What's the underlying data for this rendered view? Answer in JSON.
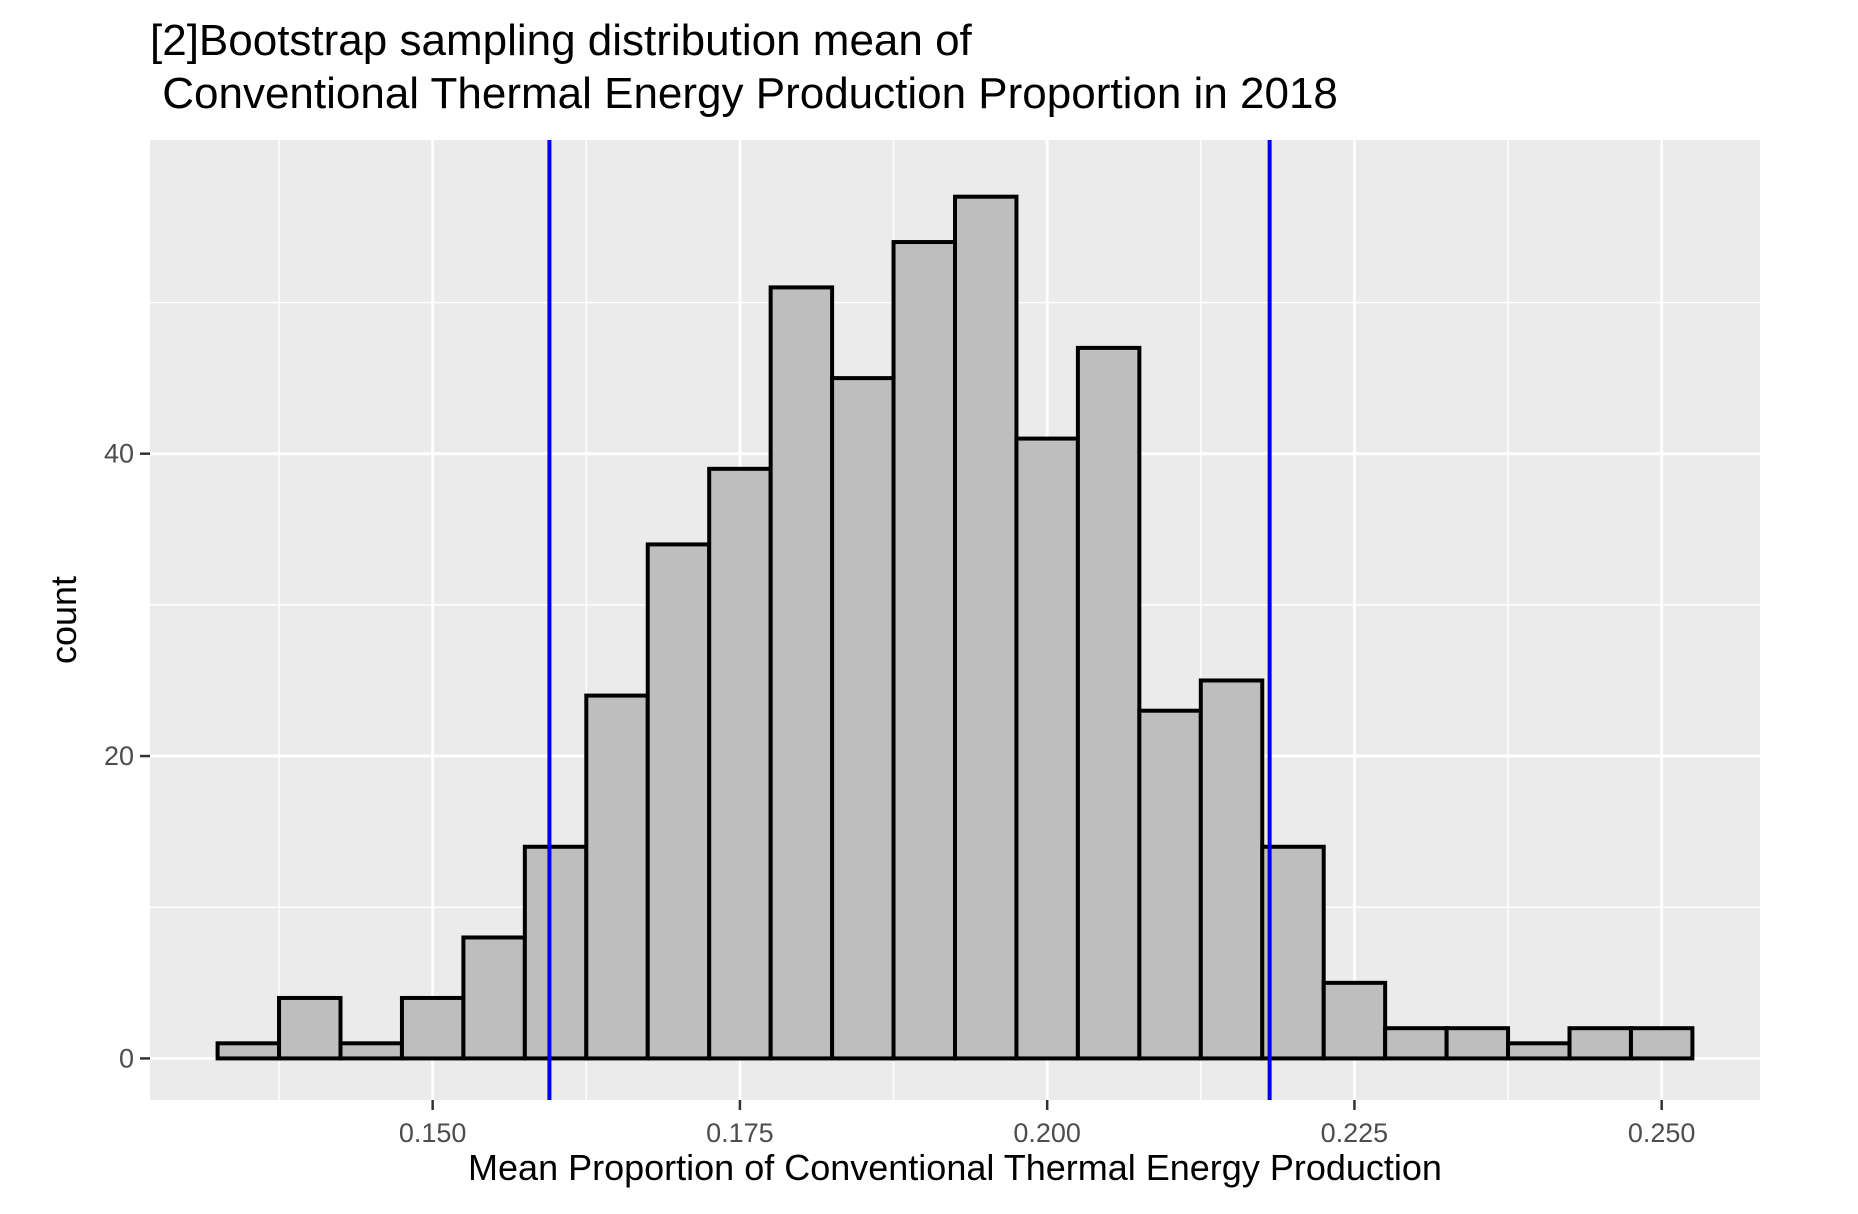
{
  "chart_data": {
    "type": "bar",
    "title_lines": [
      "[2]Bootstrap sampling distribution mean of",
      " Conventional Thermal Energy Production Proportion in 2018"
    ],
    "xlabel": "Mean Proportion of Conventional Thermal Energy Production",
    "ylabel": "count",
    "xlim": [
      0.127,
      0.258
    ],
    "ylim": [
      -2.75,
      60.75
    ],
    "x_ticks": [
      0.15,
      0.175,
      0.2,
      0.225,
      0.25
    ],
    "x_tick_labels": [
      "0.150",
      "0.175",
      "0.200",
      "0.225",
      "0.250"
    ],
    "y_ticks": [
      0,
      20,
      40
    ],
    "y_tick_labels": [
      "0",
      "20",
      "40"
    ],
    "bin_width": 0.005,
    "bins": [
      {
        "x0": 0.1325,
        "x1": 0.1375,
        "count": 1
      },
      {
        "x0": 0.1375,
        "x1": 0.1425,
        "count": 4
      },
      {
        "x0": 0.1425,
        "x1": 0.1475,
        "count": 1
      },
      {
        "x0": 0.1475,
        "x1": 0.1525,
        "count": 4
      },
      {
        "x0": 0.1525,
        "x1": 0.1575,
        "count": 8
      },
      {
        "x0": 0.1575,
        "x1": 0.1625,
        "count": 14
      },
      {
        "x0": 0.1625,
        "x1": 0.1675,
        "count": 24
      },
      {
        "x0": 0.1675,
        "x1": 0.1725,
        "count": 34
      },
      {
        "x0": 0.1725,
        "x1": 0.1775,
        "count": 39
      },
      {
        "x0": 0.1775,
        "x1": 0.1825,
        "count": 51
      },
      {
        "x0": 0.1825,
        "x1": 0.1875,
        "count": 45
      },
      {
        "x0": 0.1875,
        "x1": 0.1925,
        "count": 54
      },
      {
        "x0": 0.1925,
        "x1": 0.1975,
        "count": 57
      },
      {
        "x0": 0.1975,
        "x1": 0.2025,
        "count": 41
      },
      {
        "x0": 0.2025,
        "x1": 0.2075,
        "count": 47
      },
      {
        "x0": 0.2075,
        "x1": 0.2125,
        "count": 23
      },
      {
        "x0": 0.2125,
        "x1": 0.2175,
        "count": 25
      },
      {
        "x0": 0.2175,
        "x1": 0.2225,
        "count": 14
      },
      {
        "x0": 0.2225,
        "x1": 0.2275,
        "count": 5
      },
      {
        "x0": 0.2275,
        "x1": 0.2325,
        "count": 2
      },
      {
        "x0": 0.2325,
        "x1": 0.2375,
        "count": 2
      },
      {
        "x0": 0.2375,
        "x1": 0.2425,
        "count": 1
      },
      {
        "x0": 0.2425,
        "x1": 0.2475,
        "count": 2
      },
      {
        "x0": 0.2475,
        "x1": 0.2525,
        "count": 2
      }
    ],
    "vlines": [
      {
        "x": 0.1595,
        "color": "#0000ee"
      },
      {
        "x": 0.2181,
        "color": "#0000ee"
      }
    ],
    "colors": {
      "panel_background": "#ebebeb",
      "grid": "#ffffff",
      "bar_fill": "#bebebe",
      "bar_outline": "#000000"
    },
    "grid": true,
    "legend": "none"
  }
}
